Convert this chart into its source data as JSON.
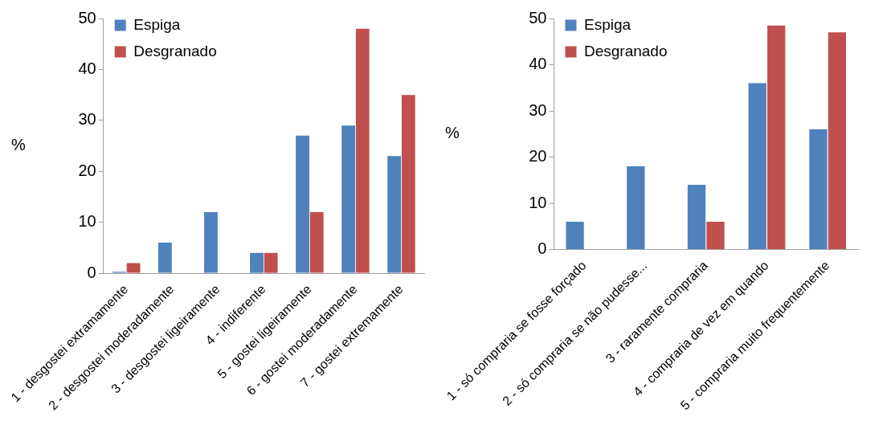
{
  "chart_data": [
    {
      "type": "bar",
      "ylabel": "%",
      "categories": [
        "1 - desgostei extramamente",
        "2 - desgostei moderadamente",
        "3 - desgostei ligeiramente",
        "4 - indiferente",
        "5 - gostei ligeiramente",
        "6 - gostei moderadamente",
        "7 - gostei extremamente"
      ],
      "series": [
        {
          "name": "Espiga",
          "color": "#4f81bd",
          "values": [
            0.3,
            6,
            12,
            4,
            27,
            29,
            23
          ]
        },
        {
          "name": "Desgranado",
          "color": "#c0504d",
          "values": [
            2,
            0,
            0,
            4,
            12,
            48,
            35
          ]
        }
      ],
      "ylim": [
        0,
        50
      ],
      "yticks": [
        0,
        10,
        20,
        30,
        40,
        50
      ],
      "grid": false,
      "legend": "top left"
    },
    {
      "type": "bar",
      "ylabel": "%",
      "categories": [
        "1 - só compraria se fosse forçado",
        "2 - só compraria se não pudesse...",
        "3 - raramente compraria",
        "4 - compraria de vez em quando",
        "5 - compraria muito frequentemente"
      ],
      "series": [
        {
          "name": "Espiga",
          "color": "#4f81bd",
          "values": [
            6,
            18,
            14,
            36,
            26
          ]
        },
        {
          "name": "Desgranado",
          "color": "#c0504d",
          "values": [
            0,
            0,
            6,
            48.5,
            47
          ]
        }
      ],
      "ylim": [
        0,
        50
      ],
      "yticks": [
        0,
        10,
        20,
        30,
        40,
        50
      ],
      "grid": false,
      "legend": "top left"
    }
  ]
}
